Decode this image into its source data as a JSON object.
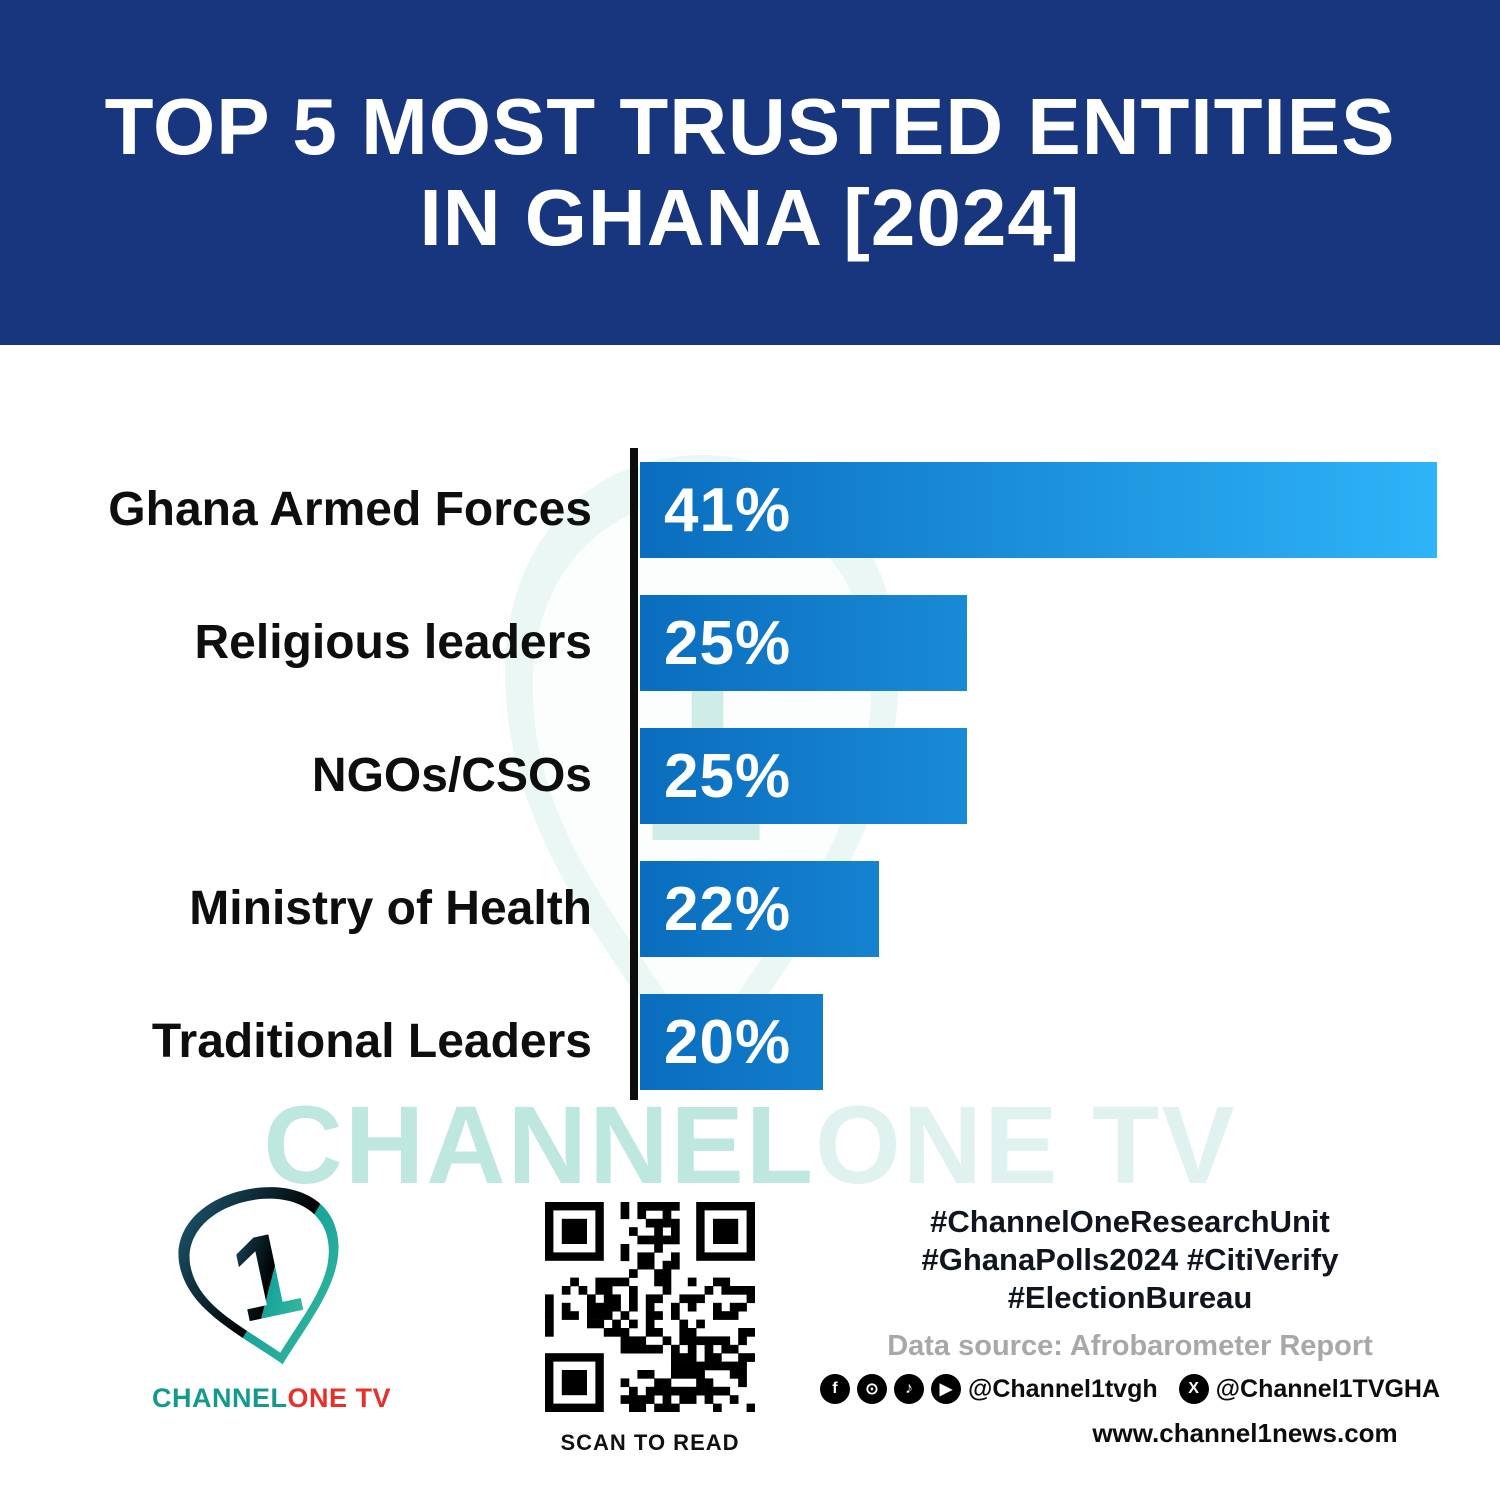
{
  "header": {
    "title_line1": "TOP 5 MOST TRUSTED ENTITIES",
    "title_line2": "IN GHANA [2024]"
  },
  "chart_data": {
    "type": "bar",
    "orientation": "horizontal",
    "title": "Top 5 Most Trusted Entities in Ghana [2024]",
    "categories": [
      "Ghana Armed Forces",
      "Religious leaders",
      "NGOs/CSOs",
      "Ministry of Health",
      "Traditional Leaders"
    ],
    "values": [
      41,
      25,
      25,
      22,
      20
    ],
    "value_labels": [
      "41%",
      "25%",
      "25%",
      "22%",
      "20%"
    ],
    "xlim": [
      0,
      41
    ],
    "grid": false,
    "legend": "none",
    "display_widths_frac": [
      1.0,
      0.41,
      0.41,
      0.3,
      0.23
    ],
    "bar_gradient": [
      "#0A6DBE",
      "#2EB4F8"
    ],
    "axis_color": "#0D0D0D"
  },
  "watermark": {
    "part1": "CHANNEL",
    "part2": "ONE TV"
  },
  "footer": {
    "logo": {
      "number": "1",
      "word_part1": "CHANNEL",
      "word_part2": "ONE",
      "word_part3": " TV"
    },
    "qr_caption": "SCAN TO READ",
    "hashtags": [
      "#ChannelOneResearchUnit",
      "#GhanaPolls2024 #CitiVerify",
      "#ElectionBureau"
    ],
    "data_source": "Data source: Afrobarometer Report",
    "social": {
      "icons": [
        {
          "name": "facebook-icon",
          "glyph": "f"
        },
        {
          "name": "instagram-icon",
          "glyph": "⊙"
        },
        {
          "name": "tiktok-icon",
          "glyph": "♪"
        },
        {
          "name": "youtube-icon",
          "glyph": "▶"
        }
      ],
      "handle1": "@Channel1tvgh",
      "x_icon_glyph": "X",
      "handle2": "@Channel1TVGHA"
    },
    "website": "www.channel1news.com"
  },
  "colors": {
    "header_bg": "#17367E",
    "bar_start": "#0A6DBE",
    "bar_end": "#2EB4F8",
    "accent_teal": "#149A8C",
    "accent_red": "#E8302A"
  }
}
